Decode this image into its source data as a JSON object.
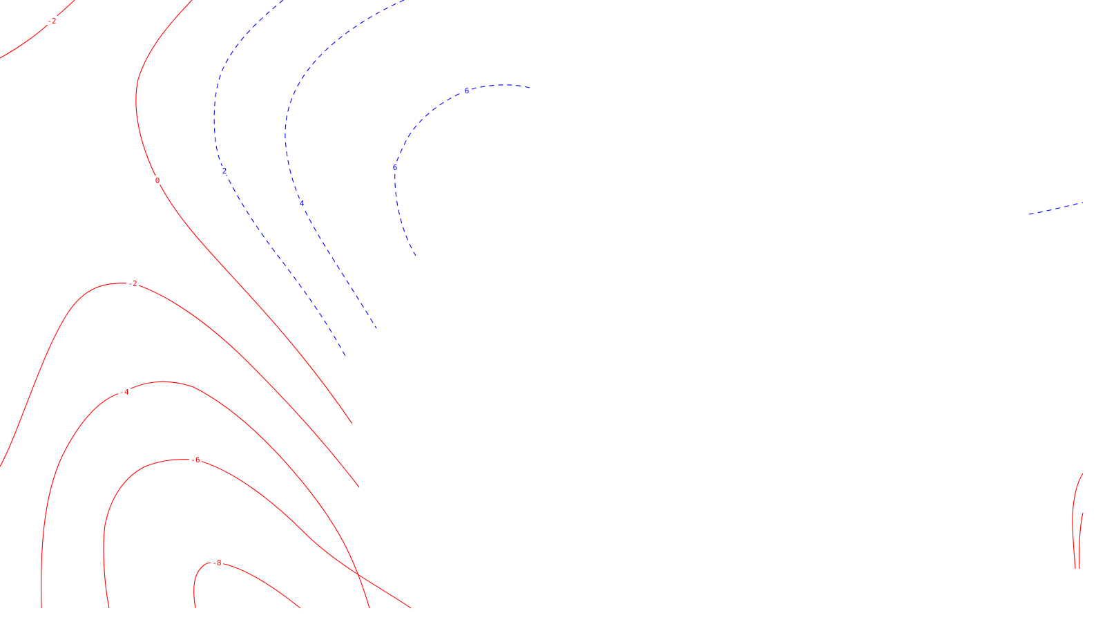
{
  "colors": {
    "positive": "#0000ff",
    "negative": "#ff0000",
    "background": "#ffffff"
  },
  "contours": [
    {
      "id": "neg2-top-left",
      "level": -2,
      "sign": "negative",
      "label": "-2"
    },
    {
      "id": "zero",
      "level": 0,
      "sign": "negative",
      "label": "0"
    },
    {
      "id": "pos2",
      "level": 2,
      "sign": "positive",
      "label": "2"
    },
    {
      "id": "pos4",
      "level": 4,
      "sign": "positive",
      "label": "4"
    },
    {
      "id": "pos6",
      "level": 6,
      "sign": "positive",
      "label": "6"
    },
    {
      "id": "neg2-lower",
      "level": -2,
      "sign": "negative",
      "label": "-2"
    },
    {
      "id": "neg4",
      "level": -4,
      "sign": "negative",
      "label": "-4"
    },
    {
      "id": "neg6",
      "level": -6,
      "sign": "negative",
      "label": "-6"
    },
    {
      "id": "neg8",
      "level": -8,
      "sign": "negative",
      "label": "-8"
    },
    {
      "id": "pos-right-fragment",
      "level": null,
      "sign": "positive",
      "label": ""
    },
    {
      "id": "neg-right-fragment-a",
      "level": null,
      "sign": "negative",
      "label": ""
    },
    {
      "id": "neg-right-fragment-b",
      "level": null,
      "sign": "negative",
      "label": ""
    }
  ]
}
